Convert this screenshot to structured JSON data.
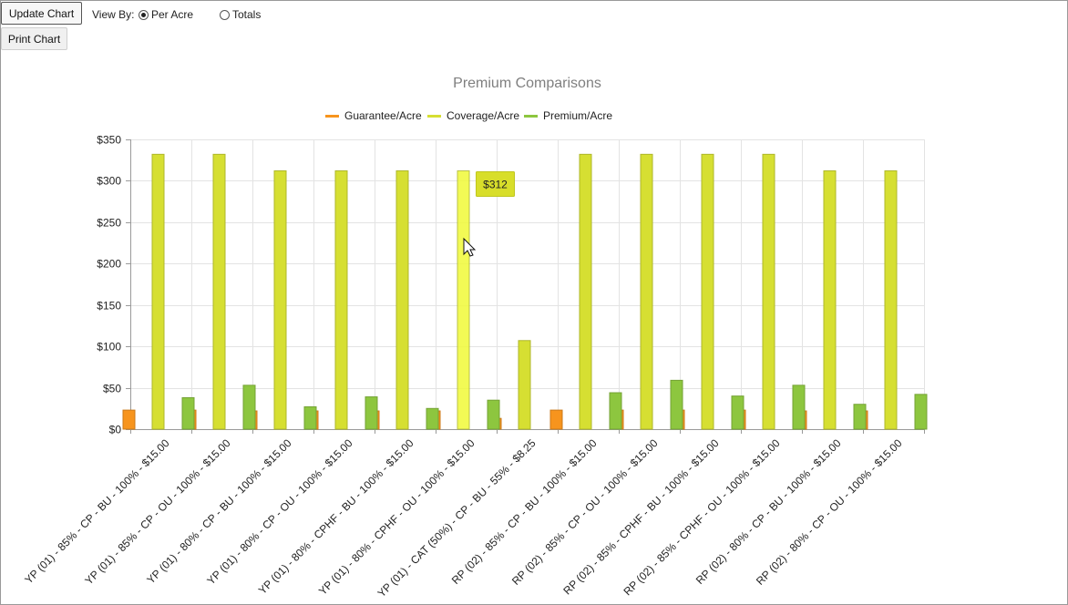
{
  "controls": {
    "update_label": "Update Chart",
    "print_label": "Print Chart",
    "view_by_label": "View By:",
    "view_options": [
      {
        "label": "Per Acre",
        "selected": true
      },
      {
        "label": "Totals",
        "selected": false
      }
    ]
  },
  "tooltip": {
    "text": "$312",
    "series_index": 1,
    "category_index": 5
  },
  "chart_data": {
    "type": "bar",
    "title": "Premium Comparisons",
    "xlabel": "",
    "ylabel": "",
    "ylim": [
      0,
      350
    ],
    "yticks": [
      0,
      50,
      100,
      150,
      200,
      250,
      300,
      350
    ],
    "ytick_labels": [
      "$0",
      "$50",
      "$100",
      "$150",
      "$200",
      "$250",
      "$300",
      "$350"
    ],
    "grid": true,
    "legend_position": "top-center",
    "categories": [
      "YP (01) - 85% - CP - BU - 100% - $15.00",
      "YP (01) - 85% - CP - OU - 100% - $15.00",
      "YP (01) - 80% - CP - BU - 100% - $15.00",
      "YP (01) - 80% - CP - OU - 100% - $15.00",
      "YP (01) - 80% - CPHF - BU - 100% - $15.00",
      "YP (01) - 80% - CPHF - OU - 100% - $15.00",
      "YP (01) - CAT (50%) - CP - BU - 55% - $8.25",
      "RP (02) - 85% - CP - BU - 100% - $15.00",
      "RP (02) - 85% - CP - OU - 100% - $15.00",
      "RP (02) - 85% - CPHF - BU - 100% - $15.00",
      "RP (02) - 85% - CPHF - OU - 100% - $15.00",
      "RP (02) - 80% - CP - BU - 100% - $15.00",
      "RP (02) - 80% - CP - OU - 100% - $15.00"
    ],
    "series": [
      {
        "name": "Guarantee/Acre",
        "color": "#f7941d",
        "values": [
          23,
          23,
          22,
          22,
          22,
          22,
          13,
          23,
          23,
          23,
          23,
          22,
          22
        ]
      },
      {
        "name": "Coverage/Acre",
        "color": "#d6df32",
        "values": [
          332,
          332,
          312,
          312,
          312,
          312,
          107,
          332,
          332,
          332,
          332,
          312,
          312
        ]
      },
      {
        "name": "Premium/Acre",
        "color": "#8dc63f",
        "values": [
          38,
          53,
          27,
          39,
          25,
          35,
          0,
          44,
          59,
          40,
          53,
          30,
          42
        ]
      }
    ]
  }
}
